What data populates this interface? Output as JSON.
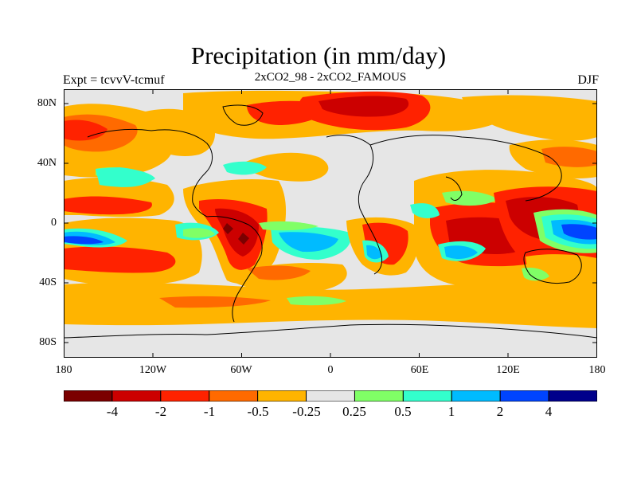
{
  "title": "Precipitation (in mm/day)",
  "subtitle": "2xCO2_98 - 2xCO2_FAMOUS",
  "experiment": "Expt = tcvvV-tcmuf",
  "season": "DJF",
  "latitude_ticks": [
    "80N",
    "40N",
    "0",
    "40S",
    "80S"
  ],
  "longitude_ticks": [
    "180",
    "120W",
    "60W",
    "0",
    "60E",
    "120E",
    "180"
  ],
  "colorbar": {
    "labels": [
      "-4",
      "-2",
      "-1",
      "-0.5",
      "-0.25",
      "0.25",
      "0.5",
      "1",
      "2",
      "4"
    ],
    "colors": [
      "#7b0000",
      "#cc0000",
      "#ff2200",
      "#ff6a00",
      "#ffb400",
      "#e6e6e6",
      "#80ff66",
      "#33ffcc",
      "#00bbff",
      "#0044ff",
      "#00008b"
    ]
  },
  "palette": {
    "neutral": "#e6e6e6",
    "dry_weak": "#ffb400",
    "dry_mid": "#ff6a00",
    "dry_strong": "#ff2200",
    "dry_heavy": "#cc0000",
    "dry_extreme": "#7b0000",
    "wet_weak": "#80ff66",
    "wet_mid": "#33ffcc",
    "wet_strong": "#00bbff",
    "wet_heavy": "#0044ff",
    "wet_extreme": "#00008b",
    "coast": "#000000"
  }
}
